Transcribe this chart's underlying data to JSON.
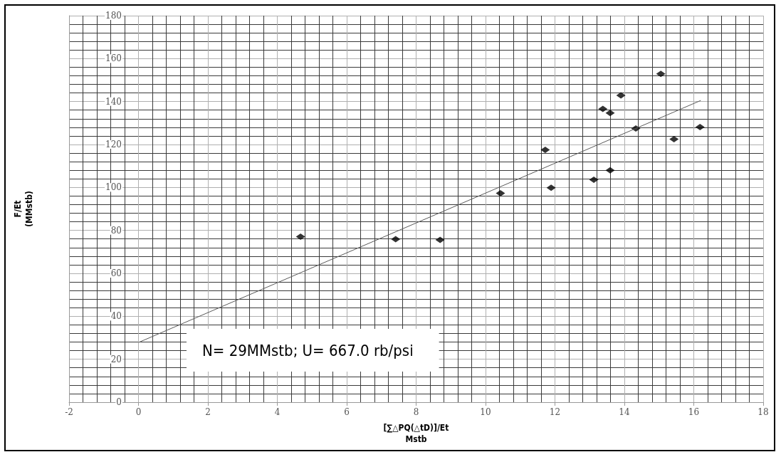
{
  "chart_data": {
    "type": "scatter",
    "xlabel": "[∑△PQ(△tD)]/Et\nMstb",
    "ylabel": "F/Et\n(MMstb)",
    "series": [
      {
        "color": "#000000",
        "x": [
          4.67,
          7.41,
          8.69,
          10.43,
          11.72,
          11.89,
          13.12,
          13.38,
          13.59,
          13.59,
          13.9,
          14.33,
          15.05,
          15.43,
          16.18
        ],
        "values": [
          77.1,
          75.9,
          75.6,
          97.3,
          117.5,
          99.9,
          103.6,
          136.6,
          134.7,
          108.0,
          142.9,
          127.5,
          152.9,
          122.5,
          128.1
        ]
      },
      {
        "type": "line",
        "marker": "none",
        "color": "#595959",
        "x": [
          0,
          16.2
        ],
        "values": [
          27.8,
          140.5
        ]
      }
    ],
    "xlim": [
      -2,
      18
    ],
    "xticks": [
      -2,
      0,
      2,
      4,
      6,
      8,
      10,
      12,
      14,
      16,
      18
    ],
    "ylim": [
      0,
      180
    ],
    "yticks": [
      0,
      20,
      40,
      60,
      80,
      100,
      120,
      140,
      160,
      180
    ],
    "grid": true,
    "marker": "diamond",
    "line_style": "solid",
    "annotations": [
      "N= 29MMstb; U= 667.0 rb/psi"
    ]
  }
}
